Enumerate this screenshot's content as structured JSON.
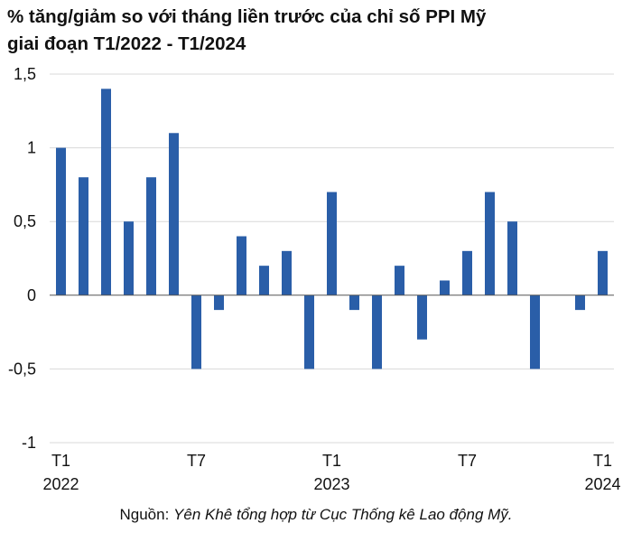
{
  "title_lines": [
    "% tăng/giảm so với tháng liền trước của chỉ số PPI Mỹ",
    "giai đoạn T1/2022 - T1/2024"
  ],
  "source": {
    "label": "Nguồn: ",
    "text": "Yên Khê tổng hợp từ Cục Thống kê Lao động Mỹ."
  },
  "colors": {
    "bar": "#2a5ea8",
    "gridline": "#d9d9d9",
    "axis": "#555555"
  },
  "chart_data": {
    "type": "bar",
    "title": "% tăng/giảm so với tháng liền trước của chỉ số PPI Mỹ giai đoạn T1/2022 - T1/2024",
    "categories": [
      "T1/2022",
      "T2/2022",
      "T3/2022",
      "T4/2022",
      "T5/2022",
      "T6/2022",
      "T7/2022",
      "T8/2022",
      "T9/2022",
      "T10/2022",
      "T11/2022",
      "T12/2022",
      "T1/2023",
      "T2/2023",
      "T3/2023",
      "T4/2023",
      "T5/2023",
      "T6/2023",
      "T7/2023",
      "T8/2023",
      "T9/2023",
      "T10/2023",
      "T11/2023",
      "T12/2023",
      "T1/2024"
    ],
    "values": [
      1.0,
      0.8,
      1.4,
      0.5,
      0.8,
      1.1,
      -0.5,
      -0.1,
      0.4,
      0.2,
      0.3,
      -0.5,
      0.7,
      -0.1,
      -0.5,
      0.2,
      -0.3,
      0.1,
      0.3,
      0.7,
      0.5,
      -0.5,
      0.0,
      -0.1,
      0.3
    ],
    "ylim": [
      -1,
      1.5
    ],
    "yticks": [
      -1,
      -0.5,
      0,
      0.5,
      1,
      1.5
    ],
    "ytick_labels": [
      "-1",
      "-0,5",
      "0",
      "0,5",
      "1",
      "1,5"
    ],
    "xtick_labels": [
      {
        "index": 0,
        "lines": [
          "T1",
          "2022"
        ]
      },
      {
        "index": 6,
        "lines": [
          "T7"
        ]
      },
      {
        "index": 12,
        "lines": [
          "T1",
          "2023"
        ]
      },
      {
        "index": 18,
        "lines": [
          "T7"
        ]
      },
      {
        "index": 24,
        "lines": [
          "T1",
          "2024"
        ]
      }
    ],
    "grid": true,
    "legend": "none"
  }
}
